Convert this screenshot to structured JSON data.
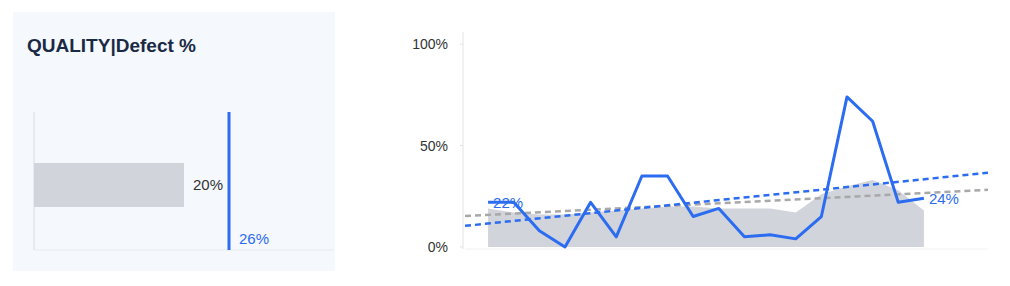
{
  "chart_data": [
    {
      "type": "bar",
      "title": "QUALITY|Defect %",
      "orientation": "horizontal",
      "categories": [
        null
      ],
      "values": [
        20
      ],
      "value_labels": [
        "20%"
      ],
      "data_labels": true,
      "color": "#d1d4db",
      "target": 26,
      "target_label": "26%",
      "target_color": "#2b6cf0",
      "xlim": [
        0,
        40
      ],
      "tick_labels": false
    },
    {
      "type": "line",
      "x": [
        0,
        1,
        2,
        3,
        4,
        5,
        6,
        7,
        8,
        9,
        10,
        11,
        12,
        13,
        14,
        15,
        16,
        17
      ],
      "xlim": [
        -0.9,
        19.5
      ],
      "ylim": [
        -1,
        106
      ],
      "yticks": [
        {
          "value": 0,
          "label": "0%"
        },
        {
          "value": 50,
          "label": "50%"
        },
        {
          "value": 100,
          "label": "100%"
        }
      ],
      "tick_labels": "y",
      "grid": false,
      "data_labels": true,
      "series": [
        {
          "type": "area",
          "color": "#d1d4db",
          "values": [
            19,
            17,
            16,
            16,
            17,
            18,
            19,
            20,
            20,
            19,
            19,
            19,
            17,
            26,
            30,
            33,
            28,
            18
          ]
        },
        {
          "type": "line",
          "line_style": "dashed",
          "color": "#a8a8a8",
          "x": [
            -0.9,
            19.5
          ],
          "values": [
            15.3,
            28.2
          ]
        },
        {
          "type": "line",
          "line_style": "dashed",
          "color": "#2b6cf0",
          "x": [
            -0.9,
            19.5
          ],
          "values": [
            10.4,
            36.6
          ]
        },
        {
          "type": "line",
          "line_style": "solid",
          "color": "#2b6cf0",
          "values": [
            22,
            22,
            8,
            0,
            22,
            5,
            35,
            35,
            15,
            19,
            5,
            6,
            4,
            15,
            74,
            62,
            22,
            24
          ],
          "value_labels": [
            "22%",
            null,
            null,
            null,
            null,
            null,
            null,
            null,
            null,
            null,
            null,
            null,
            null,
            null,
            null,
            null,
            null,
            "24%"
          ]
        }
      ]
    }
  ]
}
